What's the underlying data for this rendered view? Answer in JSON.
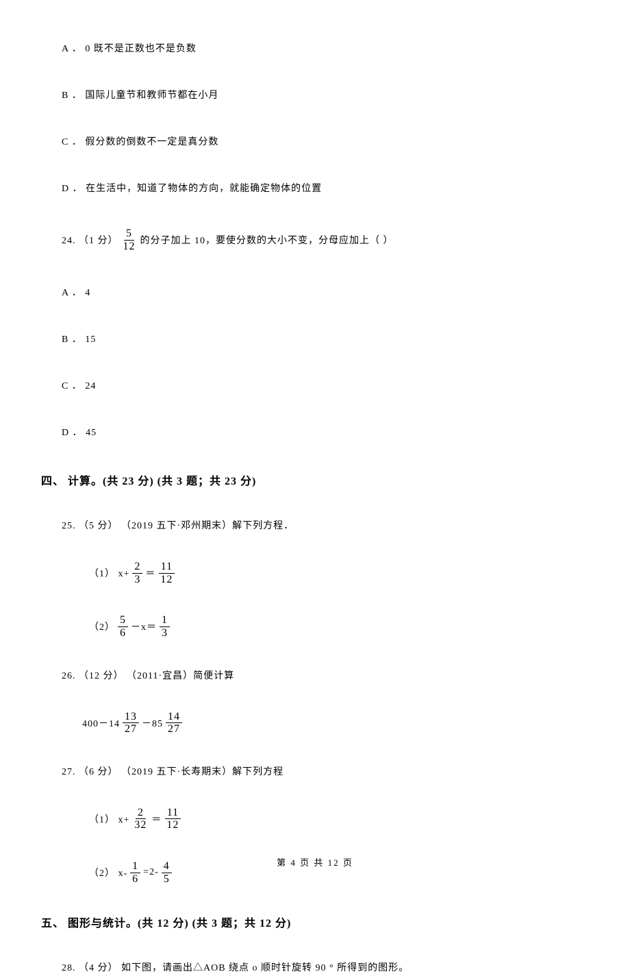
{
  "options_block_23": {
    "a": "A ． 0 既不是正数也不是负数",
    "b": "B ． 国际儿童节和教师节都在小月",
    "c": "C ． 假分数的倒数不一定是真分数",
    "d": "D ． 在生活中，知道了物体的方向，就能确定物体的位置"
  },
  "q24": {
    "prefix": "24.  （1 分） ",
    "frac": {
      "num": "5",
      "den": "12"
    },
    "suffix": "  的分子加上 10，要使分数的大小不变，分母应加上（    ）",
    "options": {
      "a": "A ． 4",
      "b": "B ． 15",
      "c": "C ． 24",
      "d": "D ． 45"
    }
  },
  "section4": {
    "header": "四、 计算。(共 23 分)  (共 3 题；共 23 分)"
  },
  "q25": {
    "line": "25.  （5 分） （2019 五下·邓州期末）解下列方程．",
    "sub1": {
      "prefix": "（1） x+",
      "frac1": {
        "num": "2",
        "den": "3"
      },
      "mid": " ＝ ",
      "frac2": {
        "num": "11",
        "den": "12"
      }
    },
    "sub2": {
      "prefix": "（2）",
      "frac1": {
        "num": "5",
        "den": "6"
      },
      "mid": " －x＝",
      "frac2": {
        "num": "1",
        "den": "3"
      }
    }
  },
  "q26": {
    "line": "26.  （12 分） （2011·宜昌）简便计算",
    "expr": {
      "p1": "400－14",
      "frac1": {
        "num": "13",
        "den": "27"
      },
      "p2": " －85",
      "frac2": {
        "num": "14",
        "den": "27"
      }
    }
  },
  "q27": {
    "line": "27.  （6 分） （2019 五下·长寿期末）解下列方程",
    "sub1": {
      "prefix": "（1） x+",
      "frac1": {
        "num": "2",
        "den": "32"
      },
      "mid": " ＝ ",
      "frac2": {
        "num": "11",
        "den": "12"
      }
    },
    "sub2": {
      "prefix": "（2） x-",
      "frac1": {
        "num": "1",
        "den": "6"
      },
      "mid": " =2-",
      "frac2": {
        "num": "4",
        "den": "5"
      }
    }
  },
  "section5": {
    "header": "五、 图形与统计。(共 12 分)  (共 3 题；共 12 分)"
  },
  "q28": {
    "line": "28.  （4 分）  如下图，请画出△AOB 绕点 o 顺时针旋转 90 ° 所得到的图形。"
  },
  "footer": "第 4 页 共 12 页"
}
